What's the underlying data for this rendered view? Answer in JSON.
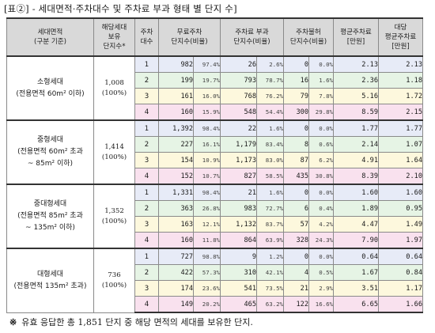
{
  "caption": "[표②] - 세대면적·주차대수 및 주차료 부과 형태 별 단지 수]",
  "headers": {
    "category": [
      "세대면적",
      "(구분 기준)"
    ],
    "holding": [
      "해당세대",
      "보유",
      "단지수*"
    ],
    "parking": [
      "주차",
      "대수"
    ],
    "free": [
      "무료주차",
      "단지수(비율)"
    ],
    "charged": [
      "주차료 부과",
      "단지수(비율)"
    ],
    "separate": [
      "주차불허",
      "단지수(비율)"
    ],
    "avg": [
      "평균주차료",
      "[만원]"
    ],
    "per_unit": [
      "대당",
      "평균주차료",
      "[만원]"
    ]
  },
  "groups": [
    {
      "name": [
        "소형세대",
        "(전용면적 60m² 이하)"
      ],
      "holding": [
        "1,008",
        "(100%)"
      ],
      "rows": [
        {
          "n": "1",
          "free": "982",
          "free_pct": "97.4%",
          "charged": "26",
          "charged_pct": "2.6%",
          "sep": "0",
          "sep_pct": "0.0%",
          "avg": "2.13",
          "per": "2.13"
        },
        {
          "n": "2",
          "free": "199",
          "free_pct": "19.7%",
          "charged": "793",
          "charged_pct": "78.7%",
          "sep": "16",
          "sep_pct": "1.6%",
          "avg": "2.36",
          "per": "1.18"
        },
        {
          "n": "3",
          "free": "161",
          "free_pct": "16.0%",
          "charged": "768",
          "charged_pct": "76.2%",
          "sep": "79",
          "sep_pct": "7.8%",
          "avg": "5.16",
          "per": "1.72"
        },
        {
          "n": "4",
          "free": "160",
          "free_pct": "15.9%",
          "charged": "548",
          "charged_pct": "54.4%",
          "sep": "300",
          "sep_pct": "29.8%",
          "avg": "8.59",
          "per": "2.15"
        }
      ]
    },
    {
      "name": [
        "중형세대",
        "(전용면적 60m² 초과",
        "~ 85m² 이하)"
      ],
      "holding": [
        "1,414",
        "(100%)"
      ],
      "rows": [
        {
          "n": "1",
          "free": "1,392",
          "free_pct": "98.4%",
          "charged": "22",
          "charged_pct": "1.6%",
          "sep": "0",
          "sep_pct": "0.0%",
          "avg": "1.77",
          "per": "1.77"
        },
        {
          "n": "2",
          "free": "227",
          "free_pct": "16.1%",
          "charged": "1,179",
          "charged_pct": "83.4%",
          "sep": "8",
          "sep_pct": "0.6%",
          "avg": "2.14",
          "per": "1.07"
        },
        {
          "n": "3",
          "free": "154",
          "free_pct": "10.9%",
          "charged": "1,173",
          "charged_pct": "83.0%",
          "sep": "87",
          "sep_pct": "6.2%",
          "avg": "4.91",
          "per": "1.64"
        },
        {
          "n": "4",
          "free": "152",
          "free_pct": "10.7%",
          "charged": "827",
          "charged_pct": "58.5%",
          "sep": "435",
          "sep_pct": "30.8%",
          "avg": "8.39",
          "per": "2.10"
        }
      ]
    },
    {
      "name": [
        "중대형세대",
        "(전용면적 85m² 초과",
        "~ 135m² 이하)"
      ],
      "holding": [
        "1,352",
        "(100%)"
      ],
      "rows": [
        {
          "n": "1",
          "free": "1,331",
          "free_pct": "98.4%",
          "charged": "21",
          "charged_pct": "1.6%",
          "sep": "0",
          "sep_pct": "0.0%",
          "avg": "1.60",
          "per": "1.60"
        },
        {
          "n": "2",
          "free": "363",
          "free_pct": "26.8%",
          "charged": "983",
          "charged_pct": "72.7%",
          "sep": "6",
          "sep_pct": "0.4%",
          "avg": "1.89",
          "per": "0.95"
        },
        {
          "n": "3",
          "free": "163",
          "free_pct": "12.1%",
          "charged": "1,132",
          "charged_pct": "83.7%",
          "sep": "57",
          "sep_pct": "4.2%",
          "avg": "4.47",
          "per": "1.49"
        },
        {
          "n": "4",
          "free": "160",
          "free_pct": "11.8%",
          "charged": "864",
          "charged_pct": "63.9%",
          "sep": "328",
          "sep_pct": "24.3%",
          "avg": "7.90",
          "per": "1.97"
        }
      ]
    },
    {
      "name": [
        "대형세대",
        "(전용면적 135m² 초과)"
      ],
      "holding": [
        "736",
        "(100%)"
      ],
      "rows": [
        {
          "n": "1",
          "free": "727",
          "free_pct": "98.8%",
          "charged": "9",
          "charged_pct": "1.2%",
          "sep": "0",
          "sep_pct": "0.0%",
          "avg": "0.64",
          "per": "0.64"
        },
        {
          "n": "2",
          "free": "422",
          "free_pct": "57.3%",
          "charged": "310",
          "charged_pct": "42.1%",
          "sep": "4",
          "sep_pct": "0.5%",
          "avg": "1.67",
          "per": "0.84"
        },
        {
          "n": "3",
          "free": "174",
          "free_pct": "23.6%",
          "charged": "541",
          "charged_pct": "73.5%",
          "sep": "21",
          "sep_pct": "2.9%",
          "avg": "3.51",
          "per": "1.17"
        },
        {
          "n": "4",
          "free": "149",
          "free_pct": "20.2%",
          "charged": "465",
          "charged_pct": "63.2%",
          "sep": "122",
          "sep_pct": "16.6%",
          "avg": "6.65",
          "per": "1.66"
        }
      ]
    }
  ],
  "footnote": {
    "mark": "※",
    "text": "유효 응답한 총 1,851 단지 중 해당 면적의 세대를 보유한 단지."
  },
  "colors": {
    "row1": "#e7ebf7",
    "row2": "#e6f4e5",
    "row3": "#fdf8dd",
    "row4": "#f9e1ee",
    "header": "#d9d9d9"
  }
}
